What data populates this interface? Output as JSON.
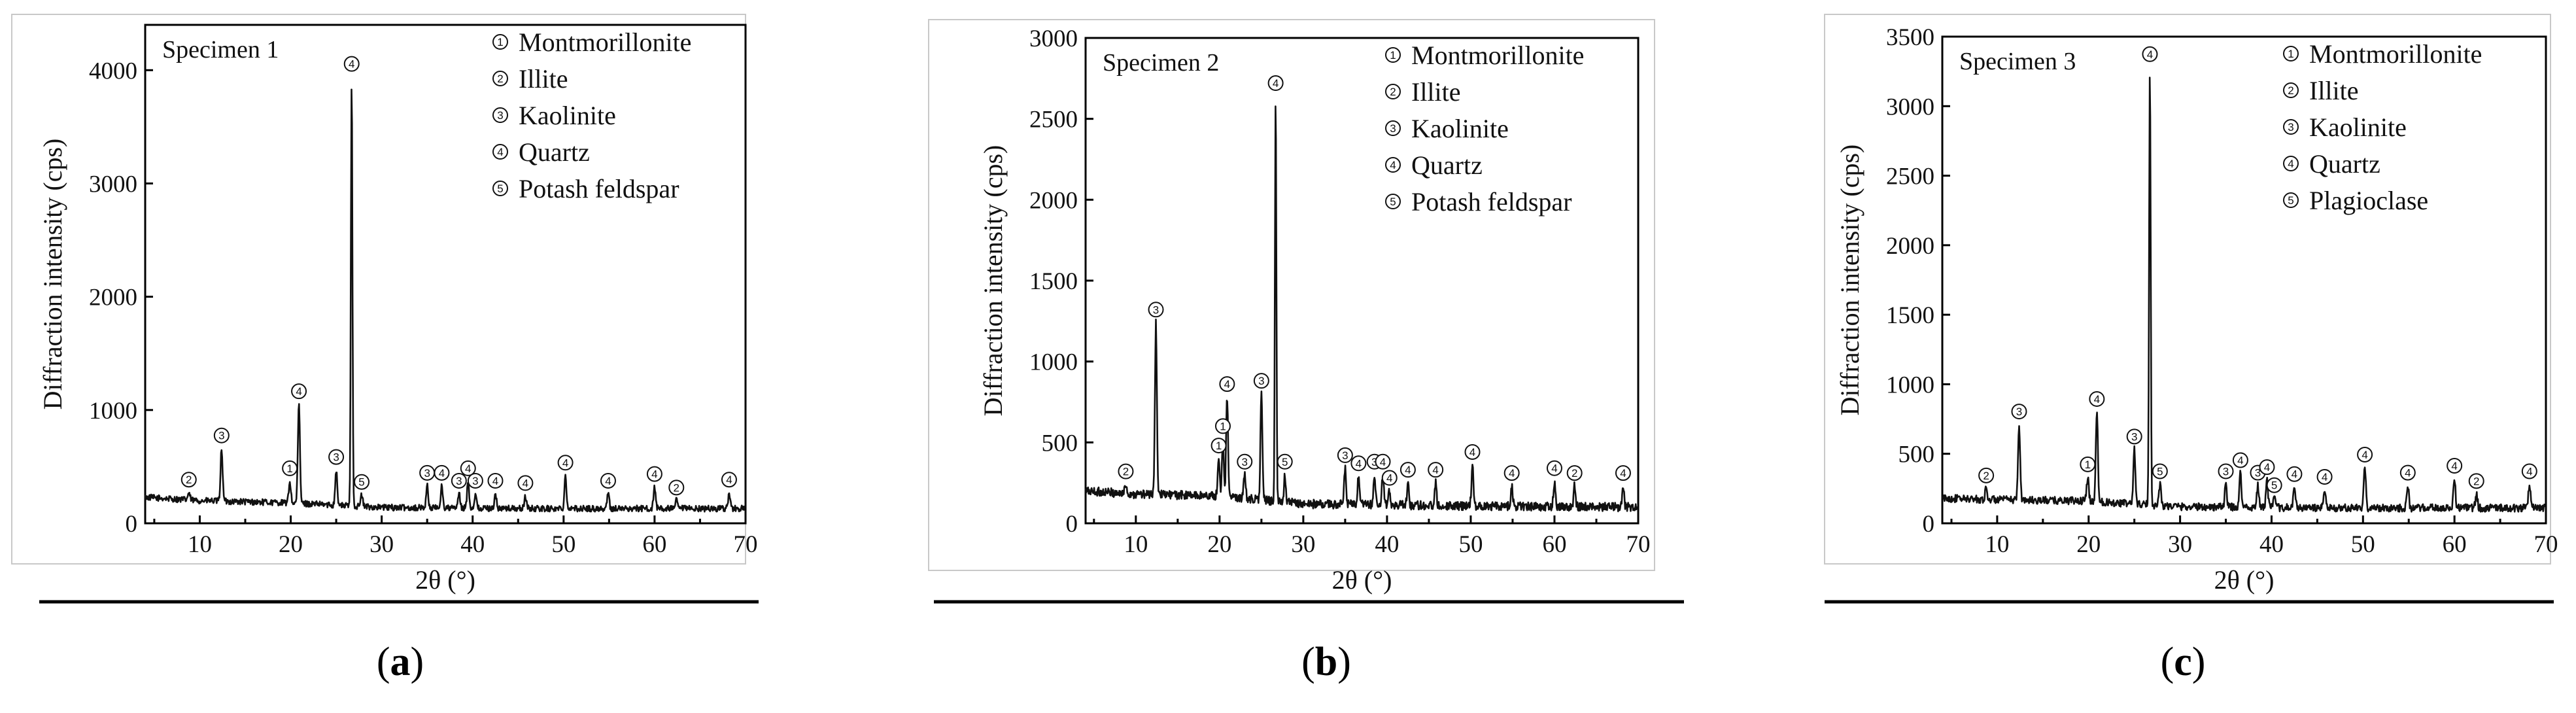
{
  "figure": {
    "background": "#ffffff",
    "line_color": "#111111"
  },
  "chart_data": [
    {
      "type": "line",
      "caption": "(a)",
      "specimen": "Specimen 1",
      "xlabel": "2θ (°)",
      "ylabel": "Diffraction intensity (cps)",
      "xlim": [
        4,
        70
      ],
      "ylim": [
        0,
        4400
      ],
      "xticks": [
        10,
        20,
        30,
        40,
        50,
        60,
        70
      ],
      "yticks": [
        0,
        1000,
        2000,
        3000,
        4000
      ],
      "legend": [
        {
          "id": "1",
          "label": "Montmorillonite"
        },
        {
          "id": "2",
          "label": "Illite"
        },
        {
          "id": "3",
          "label": "Kaolinite"
        },
        {
          "id": "4",
          "label": "Quartz"
        },
        {
          "id": "5",
          "label": "Potash feldspar"
        }
      ],
      "background_level": [
        [
          4,
          230
        ],
        [
          10,
          200
        ],
        [
          20,
          180
        ],
        [
          30,
          140
        ],
        [
          45,
          130
        ],
        [
          70,
          130
        ]
      ],
      "peaks": [
        {
          "x": 8.8,
          "y": 270,
          "label": "2"
        },
        {
          "x": 12.4,
          "y": 660,
          "label": "3"
        },
        {
          "x": 19.9,
          "y": 370,
          "label": "1"
        },
        {
          "x": 20.9,
          "y": 1050,
          "label": "4"
        },
        {
          "x": 25.0,
          "y": 470,
          "label": "3"
        },
        {
          "x": 26.7,
          "y": 3940,
          "label": "4"
        },
        {
          "x": 27.8,
          "y": 250,
          "label": "5"
        },
        {
          "x": 35.0,
          "y": 330,
          "label": "3"
        },
        {
          "x": 36.6,
          "y": 330,
          "label": "4"
        },
        {
          "x": 38.5,
          "y": 260,
          "label": "3"
        },
        {
          "x": 39.5,
          "y": 370,
          "label": "4"
        },
        {
          "x": 40.3,
          "y": 260,
          "label": "3"
        },
        {
          "x": 42.5,
          "y": 260,
          "label": "4"
        },
        {
          "x": 45.8,
          "y": 240,
          "label": "4"
        },
        {
          "x": 50.2,
          "y": 420,
          "label": "4"
        },
        {
          "x": 54.9,
          "y": 260,
          "label": "4"
        },
        {
          "x": 60.0,
          "y": 320,
          "label": "4"
        },
        {
          "x": 62.4,
          "y": 200,
          "label": "2"
        },
        {
          "x": 68.2,
          "y": 270,
          "label": "4"
        }
      ]
    },
    {
      "type": "line",
      "caption": "(b)",
      "specimen": "Specimen 2",
      "xlabel": "2θ (°)",
      "ylabel": "Diffraction intensity (cps)",
      "xlim": [
        4,
        70
      ],
      "ylim": [
        0,
        3000
      ],
      "xticks": [
        10,
        20,
        30,
        40,
        50,
        60,
        70
      ],
      "yticks": [
        0,
        500,
        1000,
        1500,
        2000,
        2500,
        3000
      ],
      "legend": [
        {
          "id": "1",
          "label": "Montmorillonite"
        },
        {
          "id": "2",
          "label": "Illite"
        },
        {
          "id": "3",
          "label": "Kaolinite"
        },
        {
          "id": "4",
          "label": "Quartz"
        },
        {
          "id": "5",
          "label": "Potash feldspar"
        }
      ],
      "background_level": [
        [
          4,
          200
        ],
        [
          10,
          180
        ],
        [
          20,
          170
        ],
        [
          30,
          120
        ],
        [
          45,
          110
        ],
        [
          70,
          100
        ]
      ],
      "peaks": [
        {
          "x": 8.8,
          "y": 240,
          "label": "2"
        },
        {
          "x": 12.4,
          "y": 1240,
          "label": "3"
        },
        {
          "x": 19.9,
          "y": 400,
          "label": "1"
        },
        {
          "x": 20.4,
          "y": 520,
          "label": "1"
        },
        {
          "x": 20.9,
          "y": 780,
          "label": "4"
        },
        {
          "x": 23.0,
          "y": 300,
          "label": "3"
        },
        {
          "x": 25.0,
          "y": 800,
          "label": "3"
        },
        {
          "x": 26.7,
          "y": 2640,
          "label": "4"
        },
        {
          "x": 27.8,
          "y": 300,
          "label": "5"
        },
        {
          "x": 35.0,
          "y": 340,
          "label": "3"
        },
        {
          "x": 36.6,
          "y": 290,
          "label": "4"
        },
        {
          "x": 38.5,
          "y": 300,
          "label": "3"
        },
        {
          "x": 39.5,
          "y": 300,
          "label": "4"
        },
        {
          "x": 40.3,
          "y": 200,
          "label": "4"
        },
        {
          "x": 42.5,
          "y": 250,
          "label": "4"
        },
        {
          "x": 45.8,
          "y": 250,
          "label": "4"
        },
        {
          "x": 50.2,
          "y": 360,
          "label": "4"
        },
        {
          "x": 54.9,
          "y": 230,
          "label": "4"
        },
        {
          "x": 60.0,
          "y": 260,
          "label": "4"
        },
        {
          "x": 62.4,
          "y": 230,
          "label": "2"
        },
        {
          "x": 68.2,
          "y": 230,
          "label": "4"
        }
      ]
    },
    {
      "type": "line",
      "caption": "(c)",
      "specimen": "Specimen 3",
      "xlabel": "2θ (°)",
      "ylabel": "Diffraction intensity (cps)",
      "xlim": [
        4,
        70
      ],
      "ylim": [
        0,
        3500
      ],
      "xticks": [
        10,
        20,
        30,
        40,
        50,
        60,
        70
      ],
      "yticks": [
        0,
        500,
        1000,
        1500,
        2000,
        2500,
        3000,
        3500
      ],
      "legend": [
        {
          "id": "1",
          "label": "Montmorillonite"
        },
        {
          "id": "2",
          "label": "Illite"
        },
        {
          "id": "3",
          "label": "Kaolinite"
        },
        {
          "id": "4",
          "label": "Quartz"
        },
        {
          "id": "5",
          "label": "Plagioclase"
        }
      ],
      "background_level": [
        [
          4,
          180
        ],
        [
          10,
          170
        ],
        [
          20,
          160
        ],
        [
          30,
          120
        ],
        [
          45,
          110
        ],
        [
          70,
          110
        ]
      ],
      "peaks": [
        {
          "x": 8.8,
          "y": 250,
          "label": "2"
        },
        {
          "x": 12.4,
          "y": 710,
          "label": "3"
        },
        {
          "x": 19.9,
          "y": 330,
          "label": "1"
        },
        {
          "x": 20.9,
          "y": 800,
          "label": "4"
        },
        {
          "x": 25.0,
          "y": 530,
          "label": "3"
        },
        {
          "x": 26.7,
          "y": 3280,
          "label": "4"
        },
        {
          "x": 27.8,
          "y": 280,
          "label": "5"
        },
        {
          "x": 35.0,
          "y": 280,
          "label": "3"
        },
        {
          "x": 36.6,
          "y": 360,
          "label": "4"
        },
        {
          "x": 38.5,
          "y": 270,
          "label": "3"
        },
        {
          "x": 39.5,
          "y": 310,
          "label": "4"
        },
        {
          "x": 40.3,
          "y": 180,
          "label": "5"
        },
        {
          "x": 42.5,
          "y": 260,
          "label": "4"
        },
        {
          "x": 45.8,
          "y": 240,
          "label": "4"
        },
        {
          "x": 50.2,
          "y": 400,
          "label": "4"
        },
        {
          "x": 54.9,
          "y": 270,
          "label": "4"
        },
        {
          "x": 60.0,
          "y": 320,
          "label": "4"
        },
        {
          "x": 62.4,
          "y": 210,
          "label": "2"
        },
        {
          "x": 68.2,
          "y": 280,
          "label": "4"
        }
      ]
    }
  ]
}
